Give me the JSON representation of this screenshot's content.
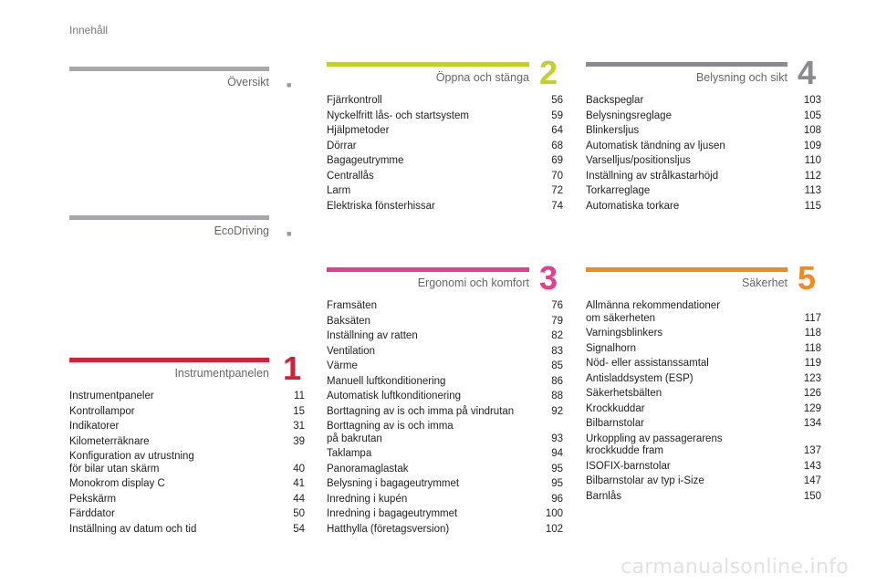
{
  "header": "Innehåll",
  "watermark": "carmanualsonline.info",
  "sections": {
    "oversikt": {
      "title": "Översikt",
      "dot": "■",
      "color": "#a6a6ab"
    },
    "ecodriving": {
      "title": "EcoDriving",
      "dot": "■",
      "color": "#a6a6ab"
    },
    "s1": {
      "title": "Instrumentpanelen",
      "number": "1",
      "color": "#d5203d",
      "entries": [
        {
          "label": "Instrumentpaneler",
          "page": "11"
        },
        {
          "label": "Kontrollampor",
          "page": "15"
        },
        {
          "label": "Indikatorer",
          "page": "31"
        },
        {
          "label": "Kilometerräknare",
          "page": "39"
        },
        {
          "label": "Konfiguration av utrustning\n    för bilar utan skärm",
          "page": "40"
        },
        {
          "label": "Monokrom display C",
          "page": "41"
        },
        {
          "label": "Pekskärm",
          "page": "44"
        },
        {
          "label": "Färddator",
          "page": "50"
        },
        {
          "label": "Inställning av datum och tid",
          "page": "54"
        }
      ]
    },
    "s2": {
      "title": "Öppna och stänga",
      "number": "2",
      "color": "#bfd030",
      "entries": [
        {
          "label": "Fjärrkontroll",
          "page": "56"
        },
        {
          "label": "Nyckelfritt lås- och startsystem",
          "page": "59"
        },
        {
          "label": "Hjälpmetoder",
          "page": "64"
        },
        {
          "label": "Dörrar",
          "page": "68"
        },
        {
          "label": "Bagageutrymme",
          "page": "69"
        },
        {
          "label": "Centrallås",
          "page": "70"
        },
        {
          "label": "Larm",
          "page": "72"
        },
        {
          "label": "Elektriska fönsterhissar",
          "page": "74"
        }
      ]
    },
    "s3": {
      "title": "Ergonomi och komfort",
      "number": "3",
      "color": "#e23f8f",
      "entries": [
        {
          "label": "Framsäten",
          "page": "76"
        },
        {
          "label": "Baksäten",
          "page": "79"
        },
        {
          "label": "Inställning av ratten",
          "page": "82"
        },
        {
          "label": "Ventilation",
          "page": "83"
        },
        {
          "label": "Värme",
          "page": "85"
        },
        {
          "label": "Manuell luftkonditionering",
          "page": "86"
        },
        {
          "label": "Automatisk luftkonditionering",
          "page": "88"
        },
        {
          "label": "Borttagning av is och imma på vindrutan",
          "page": "92"
        },
        {
          "label": "Borttagning av is och imma\n    på bakrutan",
          "page": "93"
        },
        {
          "label": "Taklampa",
          "page": "94"
        },
        {
          "label": "Panoramaglastak",
          "page": "95"
        },
        {
          "label": "Belysning i bagageutrymmet",
          "page": "95"
        },
        {
          "label": "Inredning i kupén",
          "page": "96"
        },
        {
          "label": "Inredning i bagageutrymmet",
          "page": "100"
        },
        {
          "label": "Hatthylla (företagsversion)",
          "page": "102"
        }
      ]
    },
    "s4": {
      "title": "Belysning och sikt",
      "number": "4",
      "color": "#8a8a8f",
      "entries": [
        {
          "label": "Backspeglar",
          "page": "103"
        },
        {
          "label": "Belysningsreglage",
          "page": "105"
        },
        {
          "label": "Blinkersljus",
          "page": "108"
        },
        {
          "label": "Automatisk tändning av ljusen",
          "page": "109"
        },
        {
          "label": "Varselljus/positionsljus",
          "page": "110"
        },
        {
          "label": "Inställning av strålkastarhöjd",
          "page": "112"
        },
        {
          "label": "Torkarreglage",
          "page": "113"
        },
        {
          "label": "Automatiska torkare",
          "page": "115"
        }
      ]
    },
    "s5": {
      "title": "Säkerhet",
      "number": "5",
      "color": "#f08b22",
      "entries": [
        {
          "label": "Allmänna rekommendationer\n    om säkerheten",
          "page": "117"
        },
        {
          "label": "Varningsblinkers",
          "page": "118"
        },
        {
          "label": "Signalhorn",
          "page": "118"
        },
        {
          "label": "Nöd- eller assistanssamtal",
          "page": "119"
        },
        {
          "label": "Antisladdsystem (ESP)",
          "page": "123"
        },
        {
          "label": "Säkerhetsbälten",
          "page": "126"
        },
        {
          "label": "Krockkuddar",
          "page": "129"
        },
        {
          "label": "Bilbarnstolar",
          "page": "134"
        },
        {
          "label": "Urkoppling av passagerarens\n    krockkudde fram",
          "page": "137"
        },
        {
          "label": "ISOFIX-barnstolar",
          "page": "143"
        },
        {
          "label": "Bilbarnstolar av typ i-Size",
          "page": "147"
        },
        {
          "label": "Barnlås",
          "page": "150"
        }
      ]
    }
  }
}
